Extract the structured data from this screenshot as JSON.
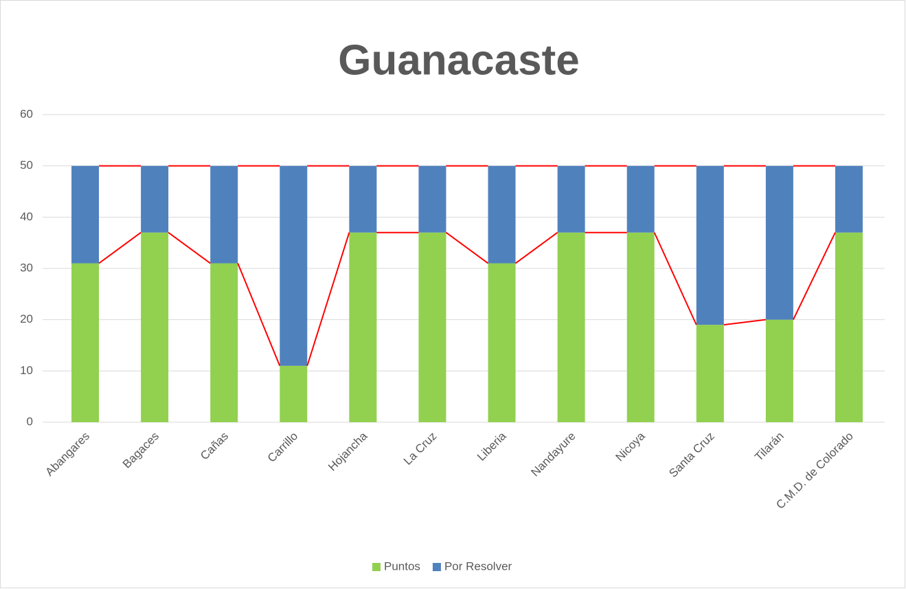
{
  "chart_data": {
    "type": "stacked_bar",
    "title": "Guanacaste",
    "categories": [
      "Abangares",
      "Bagaces",
      "Cañas",
      "Carrillo",
      "Hojancha",
      "La Cruz",
      "Liberia",
      "Nandayure",
      "Nicoya",
      "Santa Cruz",
      "Tilarán",
      "C.M.D. de Colorado"
    ],
    "series": [
      {
        "name": "Puntos",
        "color": "#92d050",
        "values": [
          31,
          37,
          31,
          11,
          37,
          37,
          31,
          37,
          37,
          19,
          20,
          37
        ]
      },
      {
        "name": "Por Resolver",
        "color": "#4f81bd",
        "values": [
          19,
          13,
          19,
          39,
          13,
          13,
          19,
          13,
          13,
          31,
          30,
          13
        ]
      }
    ],
    "ylim": [
      0,
      60
    ],
    "yticks": [
      0,
      10,
      20,
      30,
      40,
      50,
      60
    ],
    "grid": true,
    "series_lines": true,
    "series_line_color": "#ff0000",
    "legend": "bottom"
  }
}
